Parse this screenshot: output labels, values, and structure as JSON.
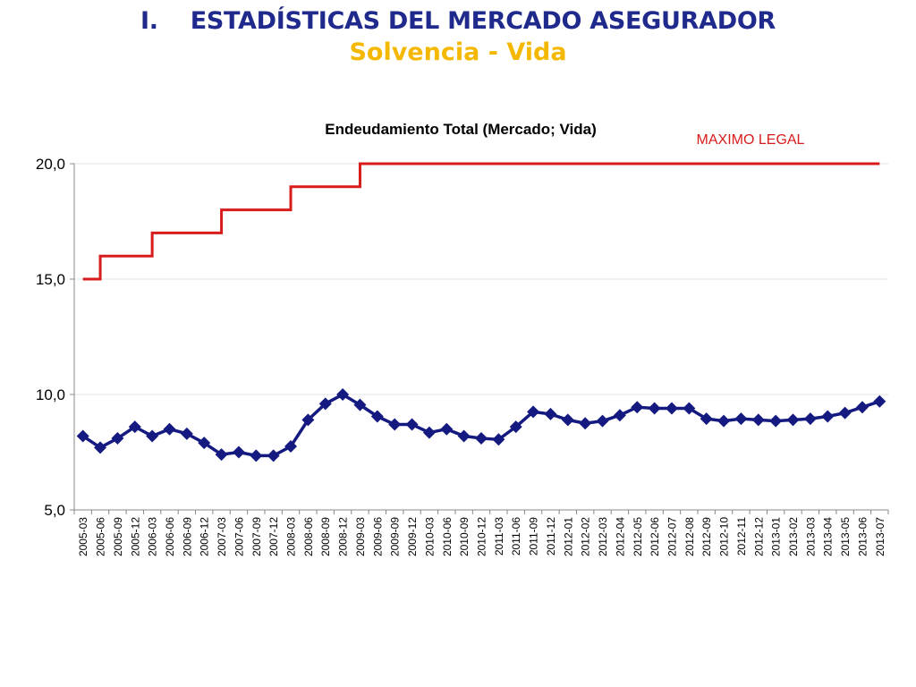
{
  "slide": {
    "number": "I.",
    "title": "ESTADÍSTICAS DEL MERCADO ASEGURADOR",
    "subtitle": "Solvencia - Vida"
  },
  "colors": {
    "title": "#1f2a8c",
    "subtitle": "#f5b800",
    "series_main": "#141a80",
    "series_legal": "#d81b1b"
  },
  "chart_data": {
    "type": "line",
    "title": "Endeudamiento Total (Mercado; Vida)",
    "ylim": [
      5,
      20
    ],
    "yticks": [
      "5,0",
      "10,0",
      "15,0",
      "20,0"
    ],
    "ytick_values": [
      5,
      10,
      15,
      20
    ],
    "grid": true,
    "categories": [
      "2005-03",
      "2005-06",
      "2005-09",
      "2005-12",
      "2006-03",
      "2006-06",
      "2006-09",
      "2006-12",
      "2007-03",
      "2007-06",
      "2007-09",
      "2007-12",
      "2008-03",
      "2008-06",
      "2008-09",
      "2008-12",
      "2009-03",
      "2009-06",
      "2009-09",
      "2009-12",
      "2010-03",
      "2010-06",
      "2010-09",
      "2010-12",
      "2011-03",
      "2011-06",
      "2011-09",
      "2011-12",
      "2012-01",
      "2012-02",
      "2012-03",
      "2012-04",
      "2012-05",
      "2012-06",
      "2012-07",
      "2012-08",
      "2012-09",
      "2012-10",
      "2012-11",
      "2012-12",
      "2013-01",
      "2013-02",
      "2013-03",
      "2013-04",
      "2013-05",
      "2013-06",
      "2013-07"
    ],
    "series": [
      {
        "name": "",
        "marker": "diamond",
        "values": [
          8.2,
          7.7,
          8.1,
          8.6,
          8.2,
          8.5,
          8.3,
          7.9,
          7.4,
          7.5,
          7.35,
          7.35,
          7.75,
          8.9,
          9.6,
          10.0,
          9.55,
          9.05,
          8.7,
          8.7,
          8.35,
          8.5,
          8.2,
          8.1,
          8.05,
          8.6,
          9.25,
          9.15,
          8.9,
          8.75,
          8.85,
          9.1,
          9.45,
          9.4,
          9.4,
          9.4,
          8.95,
          8.85,
          8.95,
          8.9,
          8.85,
          8.9,
          8.95,
          9.05,
          9.2,
          9.45,
          9.7
        ]
      },
      {
        "name": "MAXIMO LEGAL",
        "marker": "none",
        "step": true,
        "values": [
          15,
          15,
          16,
          16,
          16,
          17,
          17,
          17,
          17,
          18,
          18,
          18,
          18,
          19,
          19,
          19,
          19,
          20,
          20,
          20,
          20,
          20,
          20,
          20,
          20,
          20,
          20,
          20,
          20,
          20,
          20,
          20,
          20,
          20,
          20,
          20,
          20,
          20,
          20,
          20,
          20,
          20,
          20,
          20,
          20,
          20,
          20
        ]
      }
    ]
  }
}
